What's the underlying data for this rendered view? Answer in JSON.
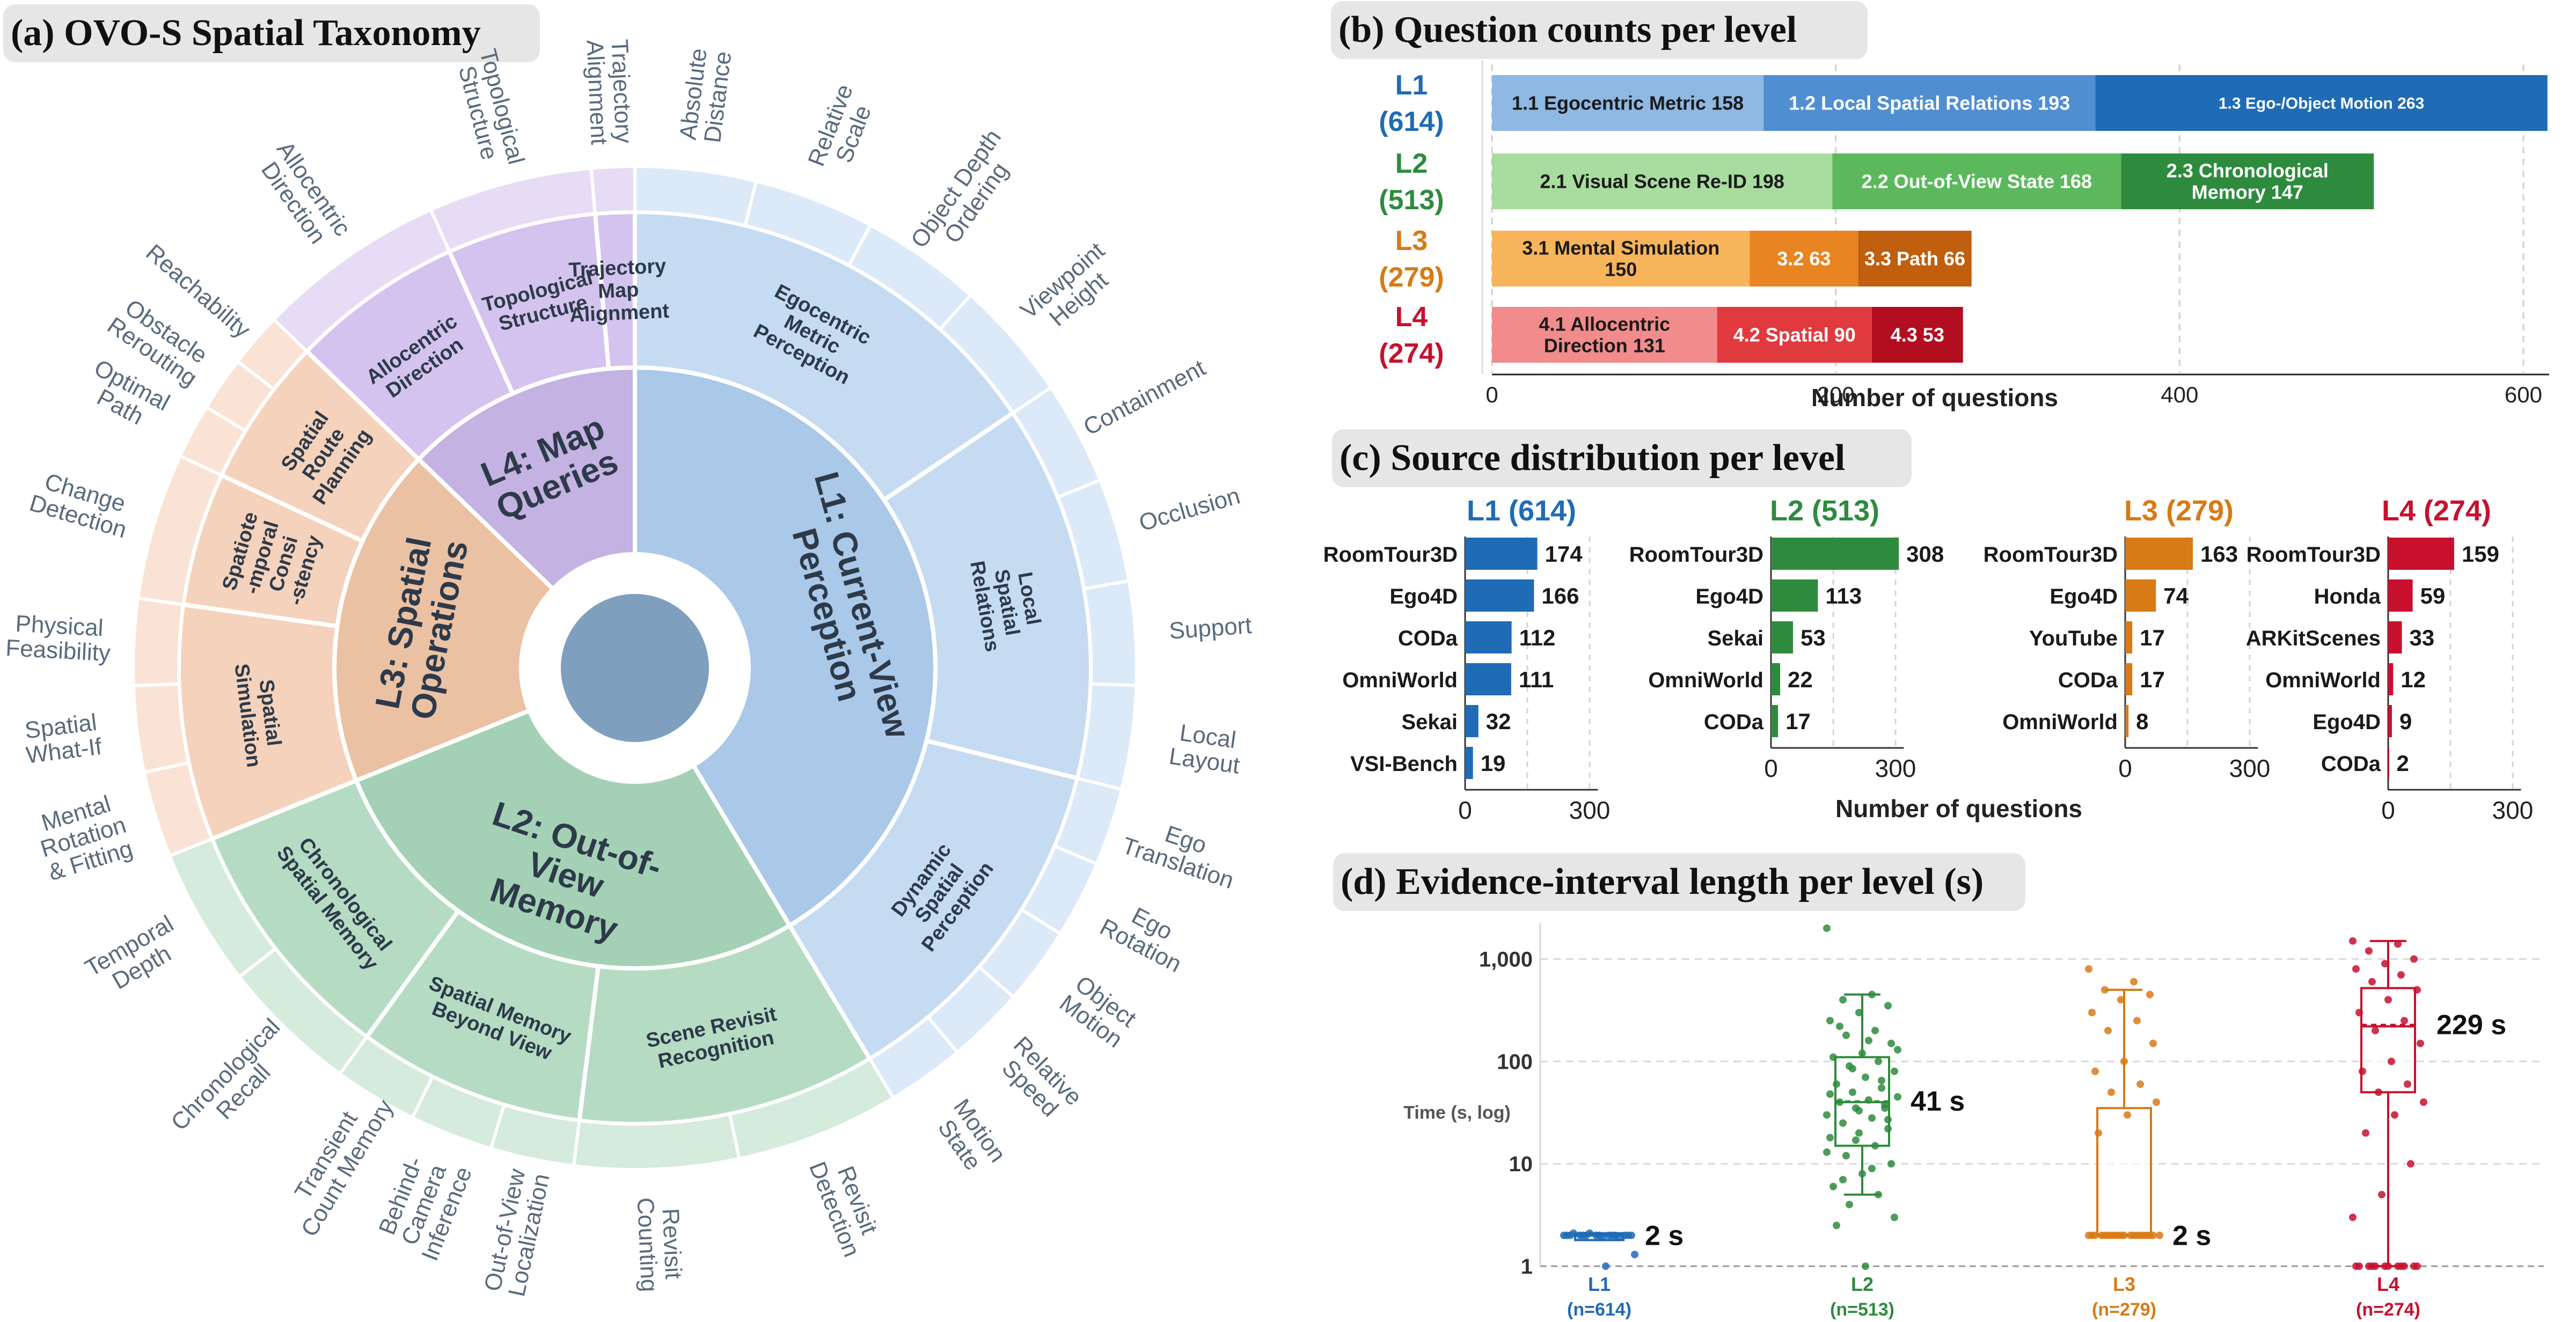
{
  "panels": {
    "a": "(a) OVO-S Spatial Taxonomy",
    "b": "(b) Question counts per level",
    "c": "(c) Source distribution per level",
    "d": "(d) Evidence-interval length per level (s)"
  },
  "colors": {
    "L1": "#1f6bb5",
    "L2": "#2e8b3e",
    "L3": "#d87a15",
    "L4": "#c8102e",
    "title_bg": "#e6e6e6"
  },
  "chart_data": [
    {
      "type": "sunburst",
      "title": "(a) OVO-S Spatial Taxonomy",
      "center_color": "#7f9fbf",
      "levels": [
        {
          "key": "L1",
          "label": "L1: Current-View Perception",
          "lines": [
            "L1: Current-View",
            "Perception"
          ],
          "color": "#aac8e8",
          "sub_color": "#c5dbf2",
          "leaf_color": "#dce9f8",
          "subs": [
            {
              "label": "Egocentric Metric Perception",
              "lines": [
                "Egocentric",
                "Metric",
                "Perception"
              ],
              "leaves": [
                {
                  "lines": [
                    "Absolute",
                    "Distance"
                  ]
                },
                {
                  "lines": [
                    "Relative",
                    "Scale"
                  ]
                },
                {
                  "lines": [
                    "Object Depth",
                    "Ordering"
                  ]
                },
                {
                  "lines": [
                    "Viewpoint",
                    "Height"
                  ]
                }
              ]
            },
            {
              "label": "Local Spatial Relations",
              "lines": [
                "Local",
                "Spatial",
                "Relations"
              ],
              "leaves": [
                {
                  "lines": [
                    "Containment"
                  ]
                },
                {
                  "lines": [
                    "Occlusion"
                  ]
                },
                {
                  "lines": [
                    "Support"
                  ]
                },
                {
                  "lines": [
                    "Local",
                    "Layout"
                  ]
                }
              ]
            },
            {
              "label": "Dynamic Spatial Perception",
              "lines": [
                "Dynamic",
                "Spatial",
                "Perception"
              ],
              "leaves": [
                {
                  "lines": [
                    "Ego",
                    "Translation"
                  ]
                },
                {
                  "lines": [
                    "Ego",
                    "Rotation"
                  ]
                },
                {
                  "lines": [
                    "Object",
                    "Motion"
                  ]
                },
                {
                  "lines": [
                    "Relative",
                    "Speed"
                  ]
                },
                {
                  "lines": [
                    "Motion",
                    "State"
                  ]
                }
              ]
            }
          ]
        },
        {
          "key": "L2",
          "label": "L2: Out-of-View Memory",
          "lines": [
            "L2: Out-of-",
            "View",
            "Memory"
          ],
          "color": "#a4d1b5",
          "sub_color": "#b5dcc3",
          "leaf_color": "#d5ebdc",
          "subs": [
            {
              "label": "Scene Revisit Recognition",
              "lines": [
                "Scene Revisit",
                "Recognition"
              ],
              "leaves": [
                {
                  "lines": [
                    "Revisit",
                    "Detection"
                  ]
                },
                {
                  "lines": [
                    "Revisit",
                    "Counting"
                  ]
                }
              ]
            },
            {
              "label": "Spatial Memory Beyond View",
              "lines": [
                "Spatial Memory",
                "Beyond View"
              ],
              "leaves": [
                {
                  "lines": [
                    "Out-of-View",
                    "Localization"
                  ]
                },
                {
                  "lines": [
                    "Behind-",
                    "Camera",
                    "Inference"
                  ]
                },
                {
                  "lines": [
                    "Transient",
                    "Count Memory"
                  ]
                }
              ]
            },
            {
              "label": "Chronological Spatial Memory",
              "lines": [
                "Chronological",
                "Spatial Memory"
              ],
              "leaves": [
                {
                  "lines": [
                    "Chronological",
                    "Recall"
                  ]
                },
                {
                  "lines": [
                    "Temporal",
                    "Depth"
                  ]
                }
              ]
            }
          ]
        },
        {
          "key": "L3",
          "label": "L3: Spatial Operations",
          "lines": [
            "L3: Spatial",
            "Operations"
          ],
          "color": "#ebc1a4",
          "sub_color": "#f5d2bb",
          "leaf_color": "#fae3d4",
          "subs": [
            {
              "label": "Spatial Simulation",
              "lines": [
                "Spatial",
                "Simulation"
              ],
              "leaves": [
                {
                  "lines": [
                    "Mental",
                    "Rotation",
                    "& Fitting"
                  ]
                },
                {
                  "lines": [
                    "Spatial",
                    "What-If"
                  ]
                },
                {
                  "lines": [
                    "Physical",
                    "Feasibility"
                  ]
                }
              ]
            },
            {
              "label": "Spatiotemporal Consistency",
              "lines": [
                "Spatiote",
                "-mporal",
                "Consi",
                "-stency"
              ],
              "leaves": [
                {
                  "lines": [
                    "Change",
                    "Detection"
                  ]
                }
              ]
            },
            {
              "label": "Spatial Route Planning",
              "lines": [
                "Spatial",
                "Route",
                "Planning"
              ],
              "leaves": [
                {
                  "lines": [
                    "Optimal",
                    "Path"
                  ]
                },
                {
                  "lines": [
                    "Obstacle",
                    "Rerouting"
                  ]
                },
                {
                  "lines": [
                    "Reachability"
                  ]
                }
              ]
            }
          ]
        },
        {
          "key": "L4",
          "label": "L4: Map Queries",
          "lines": [
            "L4: Map",
            "Queries"
          ],
          "color": "#c4b2e2",
          "sub_color": "#d4c3ee",
          "leaf_color": "#e7dcf5",
          "subs": [
            {
              "label": "Allocentric Direction",
              "lines": [
                "Allocentric",
                "Direction"
              ],
              "leaves": [
                {
                  "lines": [
                    "Allocentric",
                    "Direction"
                  ]
                }
              ]
            },
            {
              "label": "Topological Structure",
              "lines": [
                "Topological",
                "Structure"
              ],
              "leaves": [
                {
                  "lines": [
                    "Topological",
                    "Structure"
                  ]
                }
              ]
            },
            {
              "label": "Trajectory Map Alignment",
              "lines": [
                "Trajectory",
                "Map",
                "Alignment"
              ],
              "leaves": [
                {
                  "lines": [
                    "Trajectory",
                    "Alignment"
                  ]
                }
              ]
            }
          ]
        }
      ]
    },
    {
      "type": "bar",
      "orientation": "horizontal-stacked",
      "title": "(b) Question counts per level",
      "xlabel": "Number of questions",
      "xlim": [
        0,
        615
      ],
      "xticks": [
        0,
        200,
        400,
        600
      ],
      "grid": "vertical",
      "rows": [
        {
          "level": "L1",
          "label": "L1",
          "count_label": "(614)",
          "total": 614,
          "color": "#1f6bb5",
          "segments": [
            {
              "label": "1.1 Egocentric Metric 158",
              "value": 158,
              "color": "#8fb8e3",
              "text_color": "#1a1a1a"
            },
            {
              "label": "1.2 Local Spatial Relations 193",
              "value": 193,
              "color": "#4f8fd1",
              "text_color": "#ffffff"
            },
            {
              "label": "1.3 Ego-/Object Motion 263",
              "value": 263,
              "color": "#1f6bb5",
              "text_color": "#ffffff"
            }
          ]
        },
        {
          "level": "L2",
          "label": "L2",
          "count_label": "(513)",
          "total": 513,
          "color": "#2e8b3e",
          "segments": [
            {
              "label": "2.1 Visual Scene Re-ID 198",
              "value": 198,
              "color": "#a9dc9f",
              "text_color": "#1a1a1a"
            },
            {
              "label": "2.2 Out-of-View State 168",
              "value": 168,
              "color": "#5cb85c",
              "text_color": "#ffffff"
            },
            {
              "label": "2.3 Chronological Memory 147",
              "lines": [
                "2.3 Chronological",
                "Memory 147"
              ],
              "value": 147,
              "color": "#2e8b3e",
              "text_color": "#ffffff"
            }
          ]
        },
        {
          "level": "L3",
          "label": "L3",
          "count_label": "(279)",
          "total": 279,
          "color": "#d87a15",
          "segments": [
            {
              "label": "3.1 Mental Simulation 150",
              "lines": [
                "3.1 Mental Simulation",
                "150"
              ],
              "value": 150,
              "color": "#f8b45a",
              "text_color": "#1a1a1a"
            },
            {
              "label": "3.2 63",
              "value": 63,
              "color": "#e88522",
              "text_color": "#ffffff"
            },
            {
              "label": "3.3 Path 66",
              "value": 66,
              "color": "#c05f0e",
              "text_color": "#ffffff"
            }
          ]
        },
        {
          "level": "L4",
          "label": "L4",
          "count_label": "(274)",
          "total": 274,
          "color": "#c8102e",
          "segments": [
            {
              "label": "4.1 Allocentric Direction 131",
              "lines": [
                "4.1 Allocentric",
                "Direction 131"
              ],
              "value": 131,
              "color": "#f28b8b",
              "text_color": "#1a1a1a"
            },
            {
              "label": "4.2 Spatial 90",
              "value": 90,
              "color": "#e03a3e",
              "text_color": "#ffffff"
            },
            {
              "label": "4.3 53",
              "value": 53,
              "color": "#b30d20",
              "text_color": "#ffffff"
            }
          ]
        }
      ]
    },
    {
      "type": "bar",
      "orientation": "horizontal",
      "title": "(c) Source distribution per level",
      "xlabel": "Number of questions",
      "xlim": [
        0,
        320
      ],
      "xticks": [
        0,
        300
      ],
      "grid": "vertical",
      "panels": [
        {
          "title": "L1 (614)",
          "color": "#1f6bb5",
          "categories": [
            "RoomTour3D",
            "Ego4D",
            "CODa",
            "OmniWorld",
            "Sekai",
            "VSI-Bench"
          ],
          "values": [
            174,
            166,
            112,
            111,
            32,
            19
          ]
        },
        {
          "title": "L2 (513)",
          "color": "#2e8b3e",
          "categories": [
            "RoomTour3D",
            "Ego4D",
            "Sekai",
            "OmniWorld",
            "CODa"
          ],
          "values": [
            308,
            113,
            53,
            22,
            17
          ]
        },
        {
          "title": "L3 (279)",
          "color": "#d87a15",
          "categories": [
            "RoomTour3D",
            "Ego4D",
            "YouTube",
            "CODa",
            "OmniWorld"
          ],
          "values": [
            163,
            74,
            17,
            17,
            8
          ]
        },
        {
          "title": "L4 (274)",
          "color": "#c8102e",
          "categories": [
            "RoomTour3D",
            "Honda",
            "ARKitScenes",
            "OmniWorld",
            "Ego4D",
            "CODa"
          ],
          "values": [
            159,
            59,
            33,
            12,
            9,
            2
          ]
        }
      ]
    },
    {
      "type": "box",
      "title": "(d) Evidence-interval length per level (s)",
      "ylabel": "Time (s, log)",
      "yscale": "log",
      "ylim": [
        1,
        2000
      ],
      "yticks": [
        1,
        10,
        100,
        1000
      ],
      "ytick_labels": [
        "1",
        "10",
        "100",
        "1,000"
      ],
      "grid": "horizontal-dashed",
      "groups": [
        {
          "label": "L1",
          "n_label": "(n=614)",
          "color": "#1f6bb5",
          "median": 2,
          "mean": 2,
          "q1": 1.8,
          "q3": 2.1,
          "whisker_low": 1.8,
          "whisker_high": 2.1,
          "annotation": "2 s",
          "points": [
            2,
            2,
            2,
            2,
            2,
            2,
            2,
            2,
            2,
            2,
            2,
            2,
            2,
            2,
            1.9,
            2.1,
            1.9,
            2.1,
            1.3,
            1
          ]
        },
        {
          "label": "L2",
          "n_label": "(n=513)",
          "color": "#2e8b3e",
          "median": 40,
          "mean": 41,
          "q1": 15,
          "q3": 110,
          "whisker_low": 5,
          "whisker_high": 450,
          "annotation": "41 s",
          "points": [
            2000,
            450,
            400,
            350,
            300,
            250,
            200,
            180,
            150,
            120,
            110,
            100,
            90,
            80,
            70,
            60,
            55,
            50,
            45,
            42,
            40,
            38,
            35,
            30,
            28,
            25,
            22,
            20,
            18,
            15,
            12,
            10,
            8,
            6,
            5,
            4,
            3,
            1,
            2.5,
            65,
            85,
            130,
            160,
            220,
            35,
            17,
            13,
            9,
            7,
            27,
            33,
            48
          ]
        },
        {
          "label": "L3",
          "n_label": "(n=279)",
          "color": "#d87a15",
          "median": 2,
          "mean": 2,
          "q1": 2,
          "q3": 35,
          "whisker_low": 2,
          "whisker_high": 500,
          "annotation": "2 s",
          "points": [
            800,
            600,
            500,
            450,
            400,
            300,
            250,
            200,
            150,
            100,
            80,
            60,
            50,
            40,
            30,
            20,
            2,
            2,
            2,
            2,
            2,
            2,
            2,
            2,
            2,
            2,
            2,
            2,
            2,
            2,
            2,
            2,
            2,
            2,
            2,
            2
          ]
        },
        {
          "label": "L4",
          "n_label": "(n=274)",
          "color": "#c8102e",
          "median": 220,
          "mean": 229,
          "q1": 50,
          "q3": 520,
          "whisker_low": 1,
          "whisker_high": 1500,
          "annotation": "229 s",
          "points": [
            1500,
            1400,
            1200,
            1000,
            900,
            800,
            700,
            600,
            500,
            400,
            300,
            250,
            200,
            150,
            100,
            80,
            60,
            50,
            40,
            30,
            20,
            10,
            5,
            3,
            1,
            1,
            1,
            1,
            1,
            1,
            1,
            1,
            1,
            1,
            1,
            1
          ]
        }
      ]
    }
  ]
}
